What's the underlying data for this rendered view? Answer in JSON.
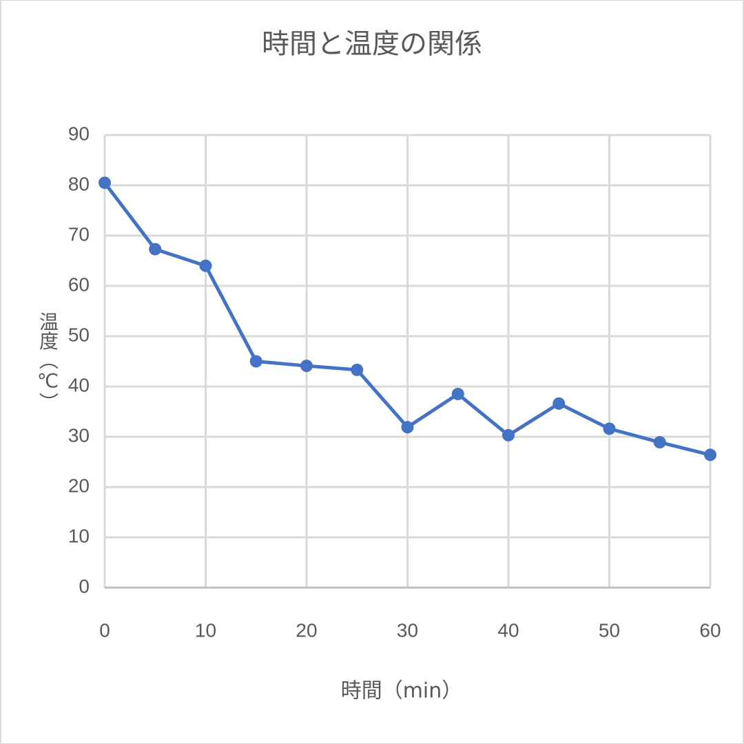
{
  "chart_data": {
    "type": "line",
    "title": "時間と温度の関係",
    "x_label": "時間（min）",
    "y_label": "温度（℃）",
    "x": [
      0,
      5,
      10,
      15,
      20,
      25,
      30,
      35,
      40,
      45,
      50,
      55,
      60
    ],
    "series": [
      {
        "color": "#4472c4",
        "values": [
          80.5,
          67.3,
          64,
          45,
          44.1,
          43.3,
          31.9,
          38.5,
          30.3,
          36.6,
          31.6,
          28.9,
          26.4
        ]
      }
    ],
    "xlim": [
      0,
      60
    ],
    "xticks": [
      0,
      10,
      20,
      30,
      40,
      50,
      60
    ],
    "ylim": [
      0,
      90
    ],
    "yticks": [
      0,
      10,
      20,
      30,
      40,
      50,
      60,
      70,
      80,
      90
    ],
    "grid": true
  }
}
